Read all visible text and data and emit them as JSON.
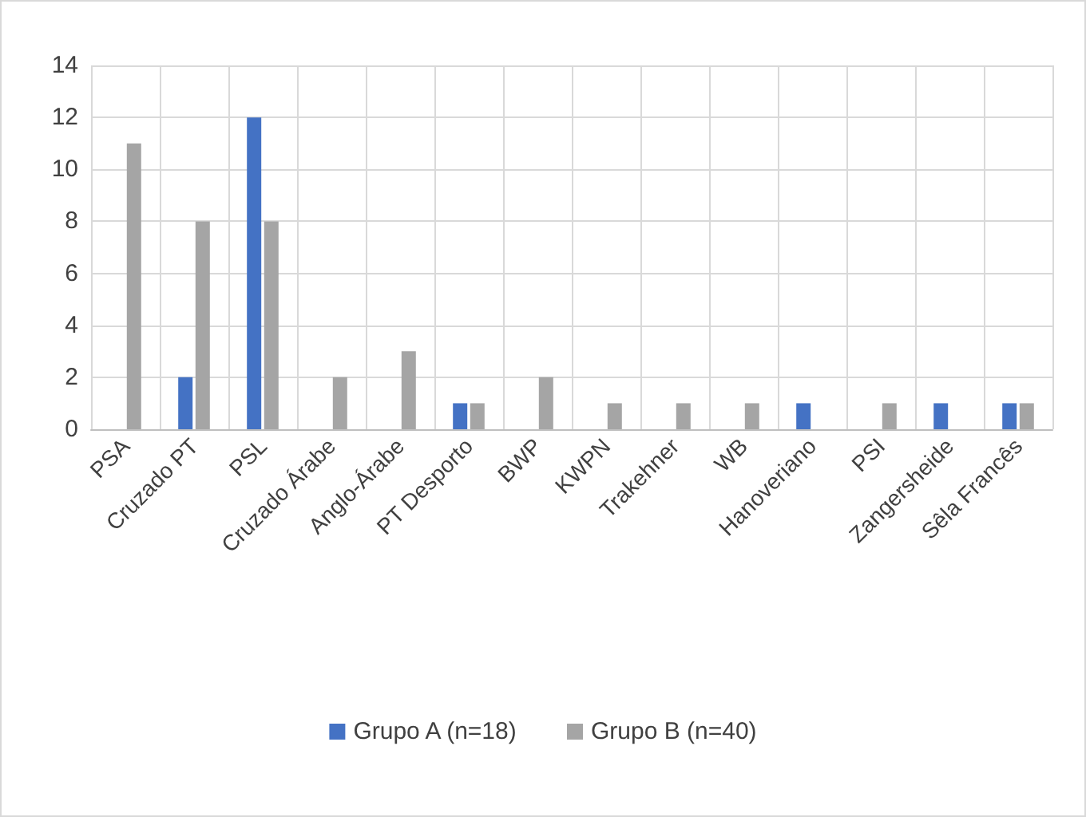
{
  "chart_data": {
    "type": "bar",
    "categories": [
      "PSA",
      "Cruzado PT",
      "PSL",
      "Cruzado Árabe",
      "Anglo-Árabe",
      "PT Desporto",
      "BWP",
      "KWPN",
      "Trakehner",
      "WB",
      "Hanoveriano",
      "PSI",
      "Zangersheide",
      "Sêla Francês"
    ],
    "series": [
      {
        "name": "Grupo A (n=18)",
        "color": "#4472c4",
        "values": [
          0,
          2,
          12,
          0,
          0,
          1,
          0,
          0,
          0,
          0,
          1,
          0,
          1,
          1
        ]
      },
      {
        "name": "Grupo B (n=40)",
        "color": "#a5a5a5",
        "values": [
          11,
          8,
          8,
          2,
          3,
          1,
          2,
          1,
          1,
          1,
          0,
          1,
          0,
          1
        ]
      }
    ],
    "ylim": [
      0,
      14
    ],
    "yticks": [
      0,
      2,
      4,
      6,
      8,
      10,
      12,
      14
    ],
    "grid": true,
    "legend": "bottom"
  }
}
